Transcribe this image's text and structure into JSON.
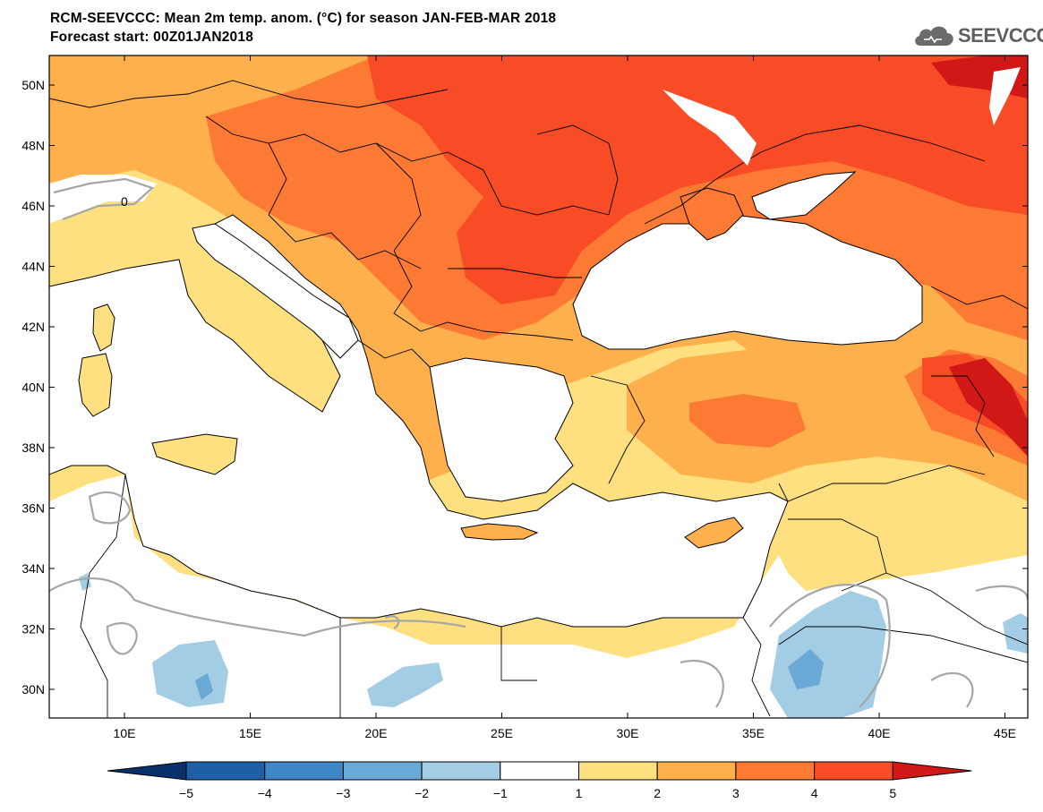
{
  "title_line1": "RCM-SEEVCCC: Mean 2m temp. anom. (°C) for season JAN-FEB-MAR 2018",
  "title_line2": "Forecast start: 00Z01JAN2018",
  "logo_text": "SEEVCCC",
  "lat_labels": [
    "50N",
    "48N",
    "46N",
    "44N",
    "42N",
    "40N",
    "38N",
    "36N",
    "34N",
    "32N",
    "30N"
  ],
  "lon_labels": [
    "10E",
    "15E",
    "20E",
    "25E",
    "30E",
    "35E",
    "40E",
    "45E"
  ],
  "contour_label": "0",
  "colorbar": {
    "labels": [
      "-5",
      "-4",
      "-3",
      "-2",
      "-1",
      "1",
      "2",
      "3",
      "4",
      "5"
    ],
    "colors": [
      "#08306b",
      "#1f5fa6",
      "#3f86c6",
      "#6aa8d6",
      "#a3cce5",
      "#ffffff",
      "#ffe080",
      "#fdb04b",
      "#fc7a34",
      "#f74c26",
      "#d21717"
    ]
  },
  "colors": {
    "sea": "#ffffff",
    "coast": "#000000",
    "contour": "#a6a6a6"
  }
}
